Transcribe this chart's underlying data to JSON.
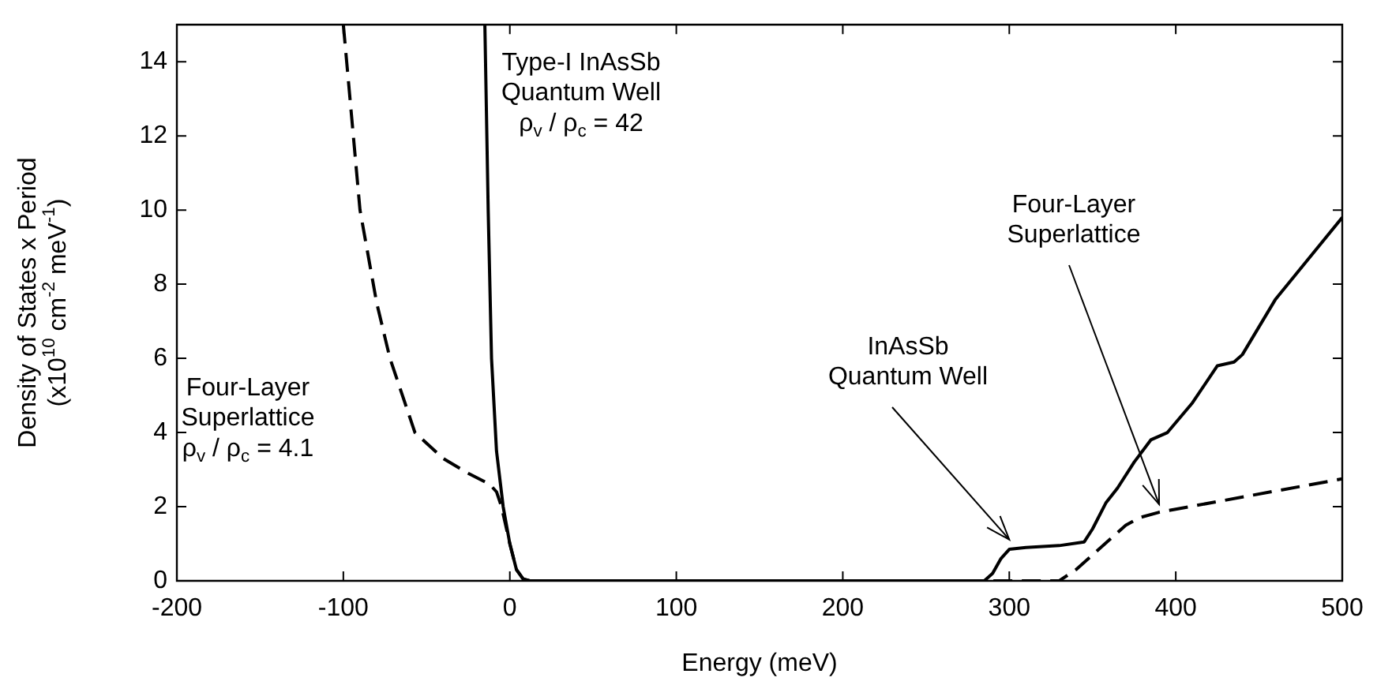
{
  "chart_data": {
    "type": "line",
    "xlabel": "Energy (meV)",
    "ylabel": "Density of States x Period\n(x10$^{10}$ cm$^{-2}$ meV$^{-1}$)",
    "xlim": [
      -200,
      500
    ],
    "xticks": [
      -200,
      -100,
      0,
      100,
      200,
      300,
      400,
      500
    ],
    "ylim": [
      0,
      15
    ],
    "yticks": [
      0,
      2,
      4,
      6,
      8,
      10,
      12,
      14
    ],
    "grid": false,
    "legend": false,
    "marker": "none",
    "series": [
      {
        "color": "#000000",
        "line_style": "solid",
        "x": [
          -15,
          -13,
          -11,
          -8,
          -4,
          0,
          4,
          8,
          12,
          285,
          290,
          295,
          300,
          310,
          330,
          345,
          350,
          358,
          365,
          375,
          385,
          395,
          410,
          425,
          435,
          440,
          460,
          480,
          500
        ],
        "values": [
          15,
          10,
          6,
          3.5,
          2,
          1,
          0.3,
          0.05,
          0,
          0,
          0.2,
          0.6,
          0.85,
          0.9,
          0.95,
          1.05,
          1.4,
          2.1,
          2.5,
          3.2,
          3.8,
          4,
          4.8,
          5.8,
          5.9,
          6.1,
          7.6,
          8.7,
          9.8
        ]
      },
      {
        "color": "#000000",
        "line_style": "dashed",
        "x": [
          -100,
          -90,
          -80,
          -72,
          -57,
          -40,
          -25,
          -12,
          -8,
          -5,
          0,
          4,
          8,
          12,
          330,
          340,
          360,
          370,
          378,
          390,
          500
        ],
        "values": [
          15,
          10,
          7.5,
          6,
          4,
          3.3,
          2.9,
          2.6,
          2.4,
          2,
          1,
          0.3,
          0.05,
          0,
          0,
          0.3,
          1.1,
          1.5,
          1.7,
          1.85,
          2.75
        ]
      }
    ],
    "annotations": [
      "Type-I InAsSb\nQuantum Well\nρ$_{v}$ / ρ$_{c}$ = 42",
      "Four-Layer\nSuperlattice\nρ$_{v}$ / ρ$_{c}$ = 4.1",
      {
        "text": "InAsSb\nQuantum Well",
        "x": 300,
        "y": 0.9
      },
      {
        "text": "Four-Layer\nSuperlattice",
        "x": 390,
        "y": 1.85
      }
    ]
  }
}
